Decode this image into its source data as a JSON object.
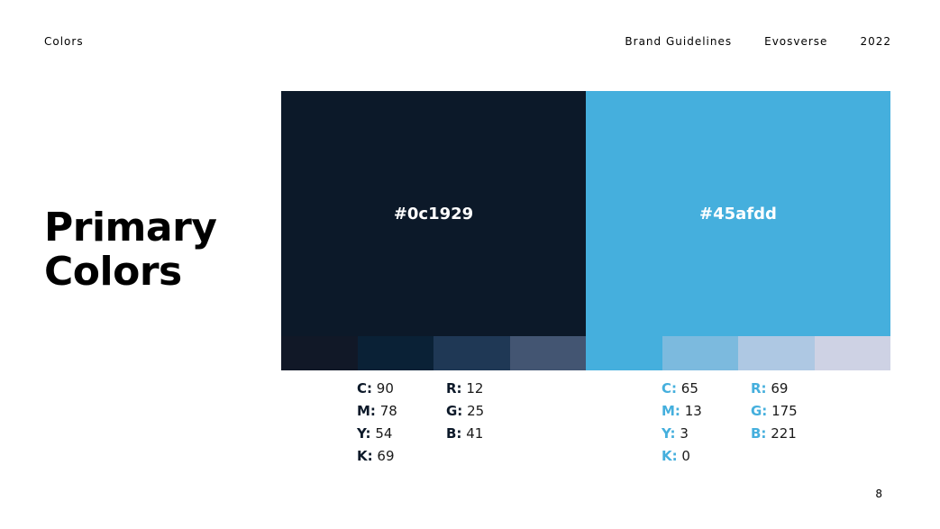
{
  "header": {
    "section": "Colors",
    "items": [
      "Brand Guidelines",
      "Evosverse",
      "2022"
    ]
  },
  "title": {
    "line1": "Primary",
    "line2": "Colors"
  },
  "palette": [
    {
      "hex_label": "#0c1929",
      "color": "#0c1929",
      "tints": [
        "#111827",
        "#0a2136",
        "#1f3855",
        "#435572"
      ],
      "cmyk": [
        {
          "key": "C:",
          "value": "90"
        },
        {
          "key": "M:",
          "value": "78"
        },
        {
          "key": "Y:",
          "value": "54"
        },
        {
          "key": "K:",
          "value": "69"
        }
      ],
      "rgb": [
        {
          "key": "R:",
          "value": "12"
        },
        {
          "key": "G:",
          "value": "25"
        },
        {
          "key": "B:",
          "value": "41"
        }
      ]
    },
    {
      "hex_label": "#45afdd",
      "color": "#45afdd",
      "tints": [
        "#45afdd",
        "#7cbade",
        "#aec8e3",
        "#ced2e4"
      ],
      "cmyk": [
        {
          "key": "C:",
          "value": "65"
        },
        {
          "key": "M:",
          "value": "13"
        },
        {
          "key": "Y:",
          "value": "3"
        },
        {
          "key": "K:",
          "value": "0"
        }
      ],
      "rgb": [
        {
          "key": "R:",
          "value": "69"
        },
        {
          "key": "G:",
          "value": "175"
        },
        {
          "key": "B:",
          "value": "221"
        }
      ]
    }
  ],
  "page_number": "8"
}
